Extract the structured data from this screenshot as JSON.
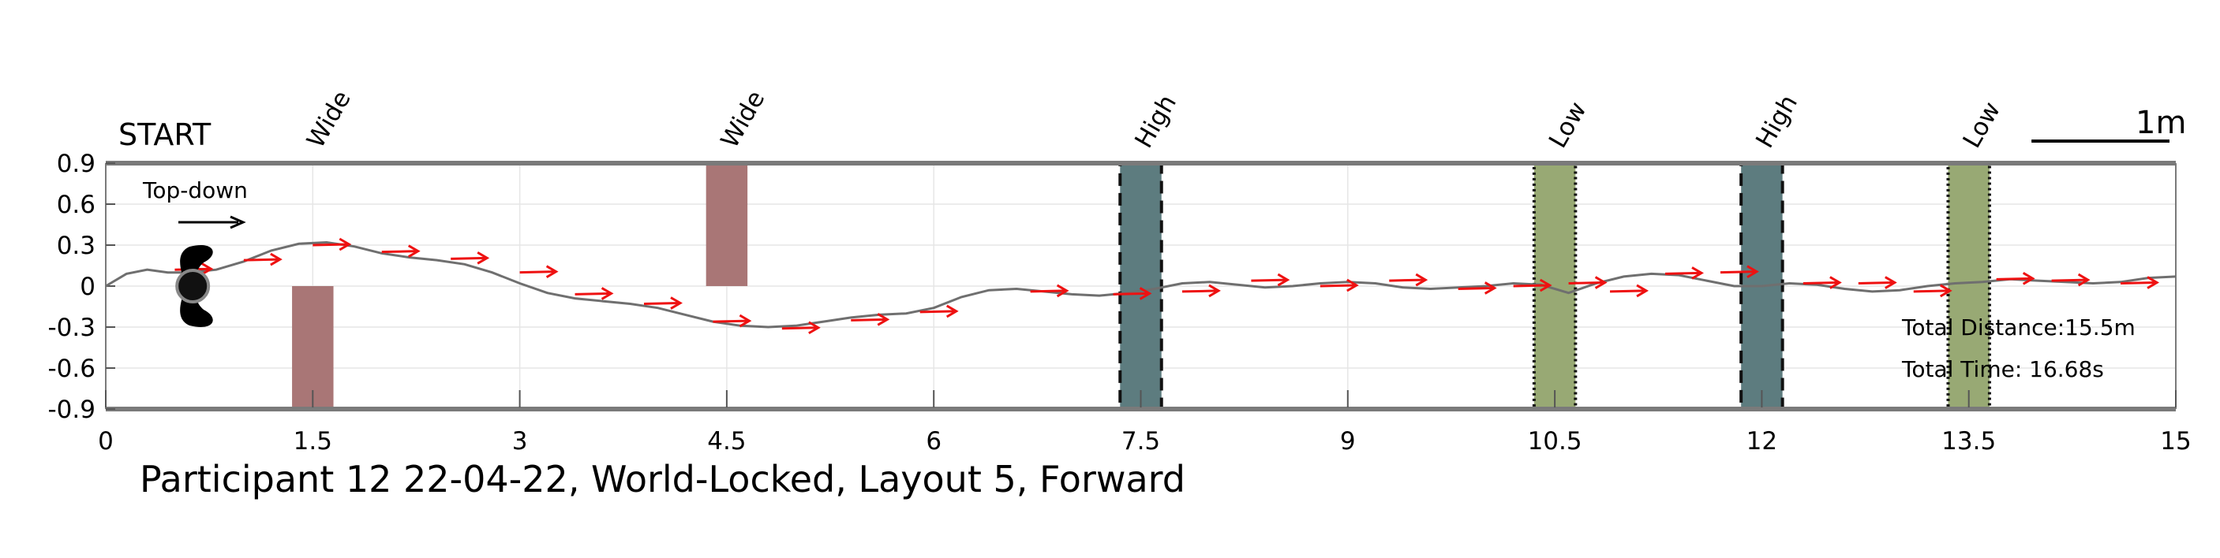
{
  "chart_data": {
    "type": "line",
    "title": "Participant 12 22-04-22, World-Locked, Layout 5, Forward",
    "xlabel": "",
    "ylabel": "",
    "xlim": [
      0,
      15
    ],
    "ylim": [
      -0.9,
      0.9
    ],
    "x_ticks": [
      "0",
      "1.5",
      "3",
      "4.5",
      "6",
      "7.5",
      "9",
      "10.5",
      "12",
      "13.5",
      "15"
    ],
    "y_ticks": [
      "0.9",
      "0.6",
      "0.3",
      "0",
      "-0.3",
      "-0.6",
      "-0.9"
    ],
    "grid": true,
    "start_label": "START",
    "topdown_label": "Top-down",
    "scale_label": "1m",
    "scale_length_m": 1.0,
    "total_distance": "Total Distance:15.5m",
    "total_time": "Total Time: 16.68s",
    "obstacles": [
      {
        "label": "Wide",
        "kind": "wide",
        "x_center": 1.5,
        "width": 0.3,
        "y_range": [
          -0.9,
          0.0
        ],
        "color": "#a97676"
      },
      {
        "label": "Wide",
        "kind": "wide",
        "x_center": 4.5,
        "width": 0.3,
        "y_range": [
          0.0,
          0.9
        ],
        "color": "#a97676"
      },
      {
        "label": "High",
        "kind": "high",
        "x_center": 7.5,
        "width": 0.3,
        "y_range": [
          -0.9,
          0.9
        ],
        "color": "#5d7c7f"
      },
      {
        "label": "Low",
        "kind": "low",
        "x_center": 10.5,
        "width": 0.3,
        "y_range": [
          -0.9,
          0.9
        ],
        "color": "#98a974"
      },
      {
        "label": "High",
        "kind": "high",
        "x_center": 12.0,
        "width": 0.3,
        "y_range": [
          -0.9,
          0.9
        ],
        "color": "#5d7c7f"
      },
      {
        "label": "Low",
        "kind": "low",
        "x_center": 13.5,
        "width": 0.3,
        "y_range": [
          -0.9,
          0.9
        ],
        "color": "#98a974"
      }
    ],
    "series": [
      {
        "color": "#6f6f6f",
        "x": [
          0,
          0.15,
          0.3,
          0.45,
          0.6,
          0.8,
          1.0,
          1.2,
          1.4,
          1.6,
          1.8,
          2.0,
          2.2,
          2.4,
          2.6,
          2.8,
          3.0,
          3.2,
          3.4,
          3.6,
          3.8,
          4.0,
          4.2,
          4.4,
          4.6,
          4.8,
          5.0,
          5.2,
          5.4,
          5.6,
          5.8,
          6.0,
          6.2,
          6.4,
          6.6,
          6.8,
          7.0,
          7.2,
          7.4,
          7.6,
          7.8,
          8.0,
          8.2,
          8.4,
          8.6,
          8.8,
          9.0,
          9.2,
          9.4,
          9.6,
          9.8,
          10.0,
          10.2,
          10.4,
          10.6,
          10.8,
          11.0,
          11.2,
          11.4,
          11.6,
          11.8,
          12.0,
          12.2,
          12.4,
          12.6,
          12.8,
          13.0,
          13.2,
          13.4,
          13.6,
          13.8,
          14.0,
          14.2,
          14.4,
          14.6,
          14.8,
          15.0
        ],
        "y": [
          0.0,
          0.09,
          0.12,
          0.1,
          0.1,
          0.12,
          0.18,
          0.26,
          0.31,
          0.32,
          0.29,
          0.24,
          0.21,
          0.19,
          0.16,
          0.1,
          0.02,
          -0.05,
          -0.09,
          -0.11,
          -0.13,
          -0.16,
          -0.21,
          -0.26,
          -0.29,
          -0.3,
          -0.29,
          -0.26,
          -0.23,
          -0.21,
          -0.2,
          -0.16,
          -0.08,
          -0.03,
          -0.02,
          -0.04,
          -0.06,
          -0.07,
          -0.05,
          -0.02,
          0.02,
          0.03,
          0.01,
          -0.01,
          0.0,
          0.02,
          0.03,
          0.02,
          -0.01,
          -0.02,
          -0.01,
          0.0,
          0.02,
          0.01,
          -0.05,
          0.02,
          0.07,
          0.09,
          0.08,
          0.04,
          0.0,
          0.0,
          0.02,
          0.01,
          -0.02,
          -0.04,
          -0.03,
          0.0,
          0.02,
          0.03,
          0.05,
          0.04,
          0.03,
          0.02,
          0.03,
          0.06,
          0.07
        ]
      }
    ],
    "arrows": [
      {
        "x": 0.5,
        "y": 0.12
      },
      {
        "x": 1.0,
        "y": 0.19
      },
      {
        "x": 1.5,
        "y": 0.3
      },
      {
        "x": 2.0,
        "y": 0.25
      },
      {
        "x": 2.5,
        "y": 0.2
      },
      {
        "x": 3.0,
        "y": 0.1
      },
      {
        "x": 3.4,
        "y": -0.06
      },
      {
        "x": 3.9,
        "y": -0.13
      },
      {
        "x": 4.4,
        "y": -0.26
      },
      {
        "x": 4.9,
        "y": -0.31
      },
      {
        "x": 5.4,
        "y": -0.25
      },
      {
        "x": 5.9,
        "y": -0.19
      },
      {
        "x": 6.7,
        "y": -0.04
      },
      {
        "x": 7.3,
        "y": -0.06
      },
      {
        "x": 7.8,
        "y": -0.04
      },
      {
        "x": 8.3,
        "y": 0.04
      },
      {
        "x": 8.8,
        "y": 0.0
      },
      {
        "x": 9.3,
        "y": 0.04
      },
      {
        "x": 9.8,
        "y": -0.02
      },
      {
        "x": 10.2,
        "y": 0.0
      },
      {
        "x": 10.6,
        "y": 0.02
      },
      {
        "x": 10.9,
        "y": -0.04
      },
      {
        "x": 11.3,
        "y": 0.09
      },
      {
        "x": 11.7,
        "y": 0.1
      },
      {
        "x": 12.3,
        "y": 0.02
      },
      {
        "x": 12.7,
        "y": 0.02
      },
      {
        "x": 13.1,
        "y": -0.04
      },
      {
        "x": 13.7,
        "y": 0.05
      },
      {
        "x": 14.1,
        "y": 0.04
      },
      {
        "x": 14.6,
        "y": 0.02
      }
    ],
    "start_marker": {
      "x": 0.63,
      "y": 0.0
    }
  }
}
